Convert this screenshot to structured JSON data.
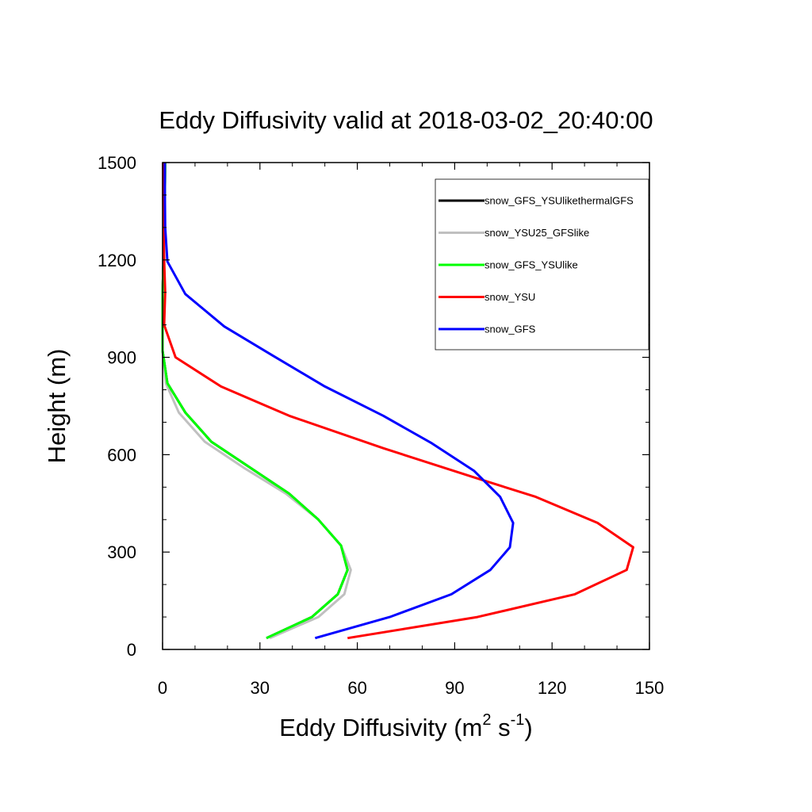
{
  "chart_data": {
    "type": "line",
    "title": "Eddy Diffusivity valid at 2018-03-02_20:40:00",
    "xlabel_main": "Eddy Diffusivity (m",
    "xlabel_sup1": "2",
    "xlabel_mid": " s",
    "xlabel_sup2": "-1",
    "xlabel_end": ")",
    "ylabel": "Height (m)",
    "xlim": [
      0,
      150
    ],
    "ylim": [
      0,
      1500
    ],
    "xticks": [
      0,
      30,
      60,
      90,
      120,
      150
    ],
    "yticks": [
      0,
      300,
      600,
      900,
      1200,
      1500
    ],
    "x_minor_step": 10,
    "y_minor_step": 100,
    "legend_position": "top-right",
    "grid": false,
    "series": [
      {
        "name": "snow_GFS_YSUlikethermalGFS",
        "color": "#000000",
        "points": [
          [
            32,
            35
          ],
          [
            46,
            100
          ],
          [
            54,
            170
          ],
          [
            57,
            245
          ],
          [
            55,
            320
          ],
          [
            48,
            400
          ],
          [
            39,
            480
          ],
          [
            27,
            560
          ],
          [
            15,
            640
          ],
          [
            7,
            730
          ],
          [
            1.5,
            820
          ],
          [
            0,
            920
          ],
          [
            0,
            1000
          ],
          [
            0,
            1100
          ],
          [
            0.3,
            1200
          ],
          [
            0.5,
            1300
          ],
          [
            0.7,
            1400
          ],
          [
            0.8,
            1500
          ]
        ]
      },
      {
        "name": "snow_YSU25_GFSlike",
        "color": "#c0c0c0",
        "points": [
          [
            33,
            35
          ],
          [
            48,
            100
          ],
          [
            56,
            170
          ],
          [
            58,
            245
          ],
          [
            55,
            320
          ],
          [
            48,
            400
          ],
          [
            38,
            480
          ],
          [
            25,
            560
          ],
          [
            13,
            640
          ],
          [
            5,
            730
          ],
          [
            1,
            820
          ],
          [
            0,
            920
          ],
          [
            0,
            1000
          ],
          [
            0,
            1100
          ],
          [
            0.3,
            1200
          ],
          [
            0.5,
            1300
          ],
          [
            0.7,
            1400
          ],
          [
            0.8,
            1500
          ]
        ]
      },
      {
        "name": "snow_GFS_YSUlike",
        "color": "#00ff00",
        "points": [
          [
            32,
            35
          ],
          [
            46,
            100
          ],
          [
            54,
            170
          ],
          [
            57,
            245
          ],
          [
            55,
            320
          ],
          [
            48,
            400
          ],
          [
            39,
            480
          ],
          [
            27,
            560
          ],
          [
            15,
            640
          ],
          [
            7,
            730
          ],
          [
            1.5,
            820
          ],
          [
            0,
            920
          ],
          [
            0,
            1000
          ],
          [
            0,
            1100
          ],
          [
            0.3,
            1200
          ],
          [
            0.5,
            1300
          ],
          [
            0.7,
            1400
          ],
          [
            0.8,
            1500
          ]
        ]
      },
      {
        "name": "snow_YSU",
        "color": "#ff0000",
        "points": [
          [
            57,
            35
          ],
          [
            97,
            100
          ],
          [
            127,
            170
          ],
          [
            143,
            245
          ],
          [
            145,
            315
          ],
          [
            134,
            390
          ],
          [
            115,
            470
          ],
          [
            96,
            530
          ],
          [
            68,
            620
          ],
          [
            39,
            720
          ],
          [
            18,
            810
          ],
          [
            4,
            900
          ],
          [
            0.5,
            1000
          ],
          [
            0.8,
            1100
          ],
          [
            0.5,
            1200
          ],
          [
            0.3,
            1300
          ],
          [
            0.2,
            1400
          ],
          [
            0.2,
            1500
          ]
        ]
      },
      {
        "name": "snow_GFS",
        "color": "#0000ff",
        "points": [
          [
            47,
            35
          ],
          [
            70,
            100
          ],
          [
            89,
            170
          ],
          [
            101,
            245
          ],
          [
            107,
            315
          ],
          [
            108,
            390
          ],
          [
            104,
            470
          ],
          [
            96,
            550
          ],
          [
            83,
            635
          ],
          [
            68,
            720
          ],
          [
            50,
            810
          ],
          [
            34,
            905
          ],
          [
            19,
            995
          ],
          [
            7,
            1095
          ],
          [
            1.5,
            1195
          ],
          [
            0.8,
            1300
          ],
          [
            0.7,
            1400
          ],
          [
            0.7,
            1500
          ]
        ]
      }
    ]
  }
}
